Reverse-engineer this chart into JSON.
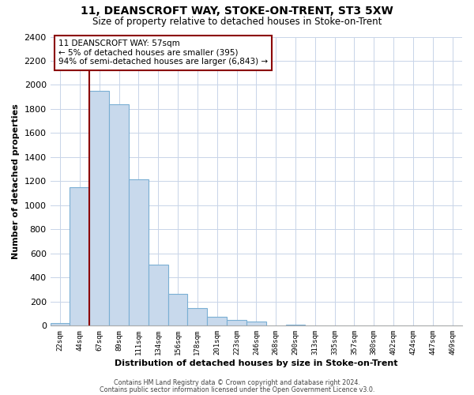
{
  "title": "11, DEANSCROFT WAY, STOKE-ON-TRENT, ST3 5XW",
  "subtitle": "Size of property relative to detached houses in Stoke-on-Trent",
  "xlabel": "Distribution of detached houses by size in Stoke-on-Trent",
  "ylabel": "Number of detached properties",
  "bar_labels": [
    "22sqm",
    "44sqm",
    "67sqm",
    "89sqm",
    "111sqm",
    "134sqm",
    "156sqm",
    "178sqm",
    "201sqm",
    "223sqm",
    "246sqm",
    "268sqm",
    "290sqm",
    "313sqm",
    "335sqm",
    "357sqm",
    "380sqm",
    "402sqm",
    "424sqm",
    "447sqm",
    "469sqm"
  ],
  "bar_values": [
    25,
    1150,
    1950,
    1840,
    1215,
    510,
    265,
    148,
    75,
    45,
    35,
    5,
    8,
    3,
    2,
    1,
    1,
    0,
    0,
    0,
    0
  ],
  "bar_color": "#c8d9ec",
  "bar_edge_color": "#7aafd4",
  "vline_x": 1.5,
  "vline_color": "#8b0000",
  "ylim": [
    0,
    2400
  ],
  "yticks": [
    0,
    200,
    400,
    600,
    800,
    1000,
    1200,
    1400,
    1600,
    1800,
    2000,
    2200,
    2400
  ],
  "annotation_title": "11 DEANSCROFT WAY: 57sqm",
  "annotation_line1": "← 5% of detached houses are smaller (395)",
  "annotation_line2": "94% of semi-detached houses are larger (6,843) →",
  "annotation_box_color": "#ffffff",
  "annotation_box_edge": "#8b0000",
  "footer1": "Contains HM Land Registry data © Crown copyright and database right 2024.",
  "footer2": "Contains public sector information licensed under the Open Government Licence v3.0.",
  "grid_color": "#c8d4e8",
  "background_color": "#ffffff"
}
